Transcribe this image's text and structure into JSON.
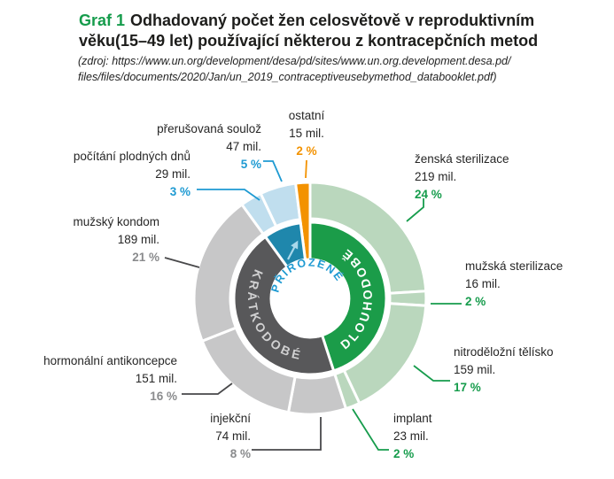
{
  "title": {
    "prefix": "Graf 1",
    "line1": "Odhadovaný počet žen celosvětově v reproduktivním",
    "line2": "věku(15–49 let) používající některou z kontracepčních metod"
  },
  "source": {
    "line1": "(zdroj: https://www.un.org/development/desa/pd/sites/www.un.org.development.desa.pd/",
    "line2": "files/files/documents/2020/Jan/un_2019_contraceptiveusebymethod_databooklet.pdf)"
  },
  "chart_data": {
    "type": "pie",
    "subtype": "double-ring-donut",
    "title": "Odhadovaný počet žen celosvětově v reproduktivním věku (15–49 let) používající některou z kontracepčních metod",
    "unit": "mil. žen",
    "total_percent": 100,
    "start_angle_deg": 0,
    "direction": "clockwise",
    "segments": [
      {
        "label": "ženská sterilizace",
        "value_mil": 219,
        "percent": 24,
        "amount_text": "219 mil.",
        "percent_text": "24 %",
        "group": "long"
      },
      {
        "label": "mužská sterilizace",
        "value_mil": 16,
        "percent": 2,
        "amount_text": "16 mil.",
        "percent_text": "2 %",
        "group": "long"
      },
      {
        "label": "nitroděložní tělísko",
        "value_mil": 159,
        "percent": 17,
        "amount_text": "159 mil.",
        "percent_text": "17 %",
        "group": "long"
      },
      {
        "label": "implant",
        "value_mil": 23,
        "percent": 2,
        "amount_text": "23 mil.",
        "percent_text": "2 %",
        "group": "long"
      },
      {
        "label": "injekční",
        "value_mil": 74,
        "percent": 8,
        "amount_text": "74 mil.",
        "percent_text": "8 %",
        "group": "short"
      },
      {
        "label": "hormonální antikoncepce",
        "value_mil": 151,
        "percent": 16,
        "amount_text": "151 mil.",
        "percent_text": "16 %",
        "group": "short"
      },
      {
        "label": "mužský kondom",
        "value_mil": 189,
        "percent": 21,
        "amount_text": "189 mil.",
        "percent_text": "21 %",
        "group": "short"
      },
      {
        "label": "počítání plodných dnů",
        "value_mil": 29,
        "percent": 3,
        "amount_text": "29 mil.",
        "percent_text": "3 %",
        "group": "natural"
      },
      {
        "label": "přerušovaná soulož",
        "value_mil": 47,
        "percent": 5,
        "amount_text": "47 mil.",
        "percent_text": "5 %",
        "group": "natural"
      },
      {
        "label": "ostatní",
        "value_mil": 15,
        "percent": 2,
        "amount_text": "15 mil.",
        "percent_text": "2 %",
        "group": "other"
      }
    ],
    "rings": {
      "inner_labels": {
        "short": "KRÁTKODOBÉ",
        "long": "DLOUHODOBĚ",
        "natural": "PŘIROZENÉ"
      }
    },
    "groups": {
      "long": {
        "inner_color": "#1b9c49",
        "outer_color": "#bad7bd",
        "accent": "#169c4c"
      },
      "short": {
        "inner_color": "#58585a",
        "outer_color": "#c7c7c8",
        "accent": "#8a8b8d"
      },
      "natural": {
        "inner_color": "#1f87ac",
        "outer_color": "#c0deee",
        "accent": "#1e9ad2"
      },
      "other": {
        "outer_color": "#f39200",
        "accent": "#f39200",
        "full_wedge": true
      }
    },
    "legend_position": "around",
    "grid": false
  }
}
